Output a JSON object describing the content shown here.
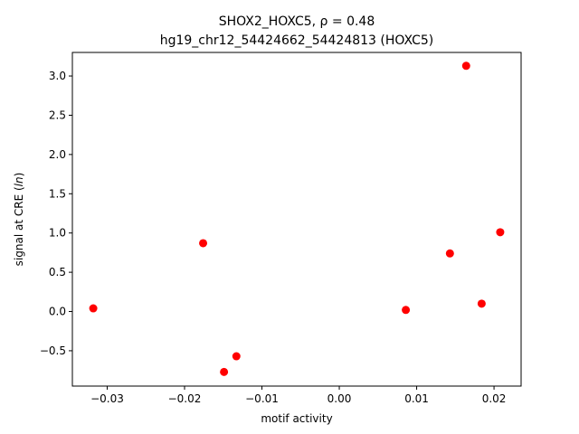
{
  "chart_data": {
    "type": "scatter",
    "title": "SHOX2_HOXC5, ρ = 0.48",
    "subtitle": "hg19_chr12_54424662_54424813 (HOXC5)",
    "xlabel": "motif activity",
    "ylabel": "signal at CRE (ln)",
    "xlim": [
      -0.0345,
      0.0235
    ],
    "ylim": [
      -0.95,
      3.3
    ],
    "xticks": [
      -0.03,
      -0.02,
      -0.01,
      0.0,
      0.01,
      0.02
    ],
    "xtick_labels": [
      "−0.03",
      "−0.02",
      "−0.01",
      "0.00",
      "0.01",
      "0.02"
    ],
    "yticks": [
      -0.5,
      0.0,
      0.5,
      1.0,
      1.5,
      2.0,
      2.5,
      3.0
    ],
    "ytick_labels": [
      "−0.5",
      "0.0",
      "0.5",
      "1.0",
      "1.5",
      "2.0",
      "2.5",
      "3.0"
    ],
    "grid": false,
    "marker_color": "#ff0000",
    "points": [
      {
        "x": -0.0318,
        "y": 0.04
      },
      {
        "x": -0.0176,
        "y": 0.87
      },
      {
        "x": -0.0149,
        "y": -0.77
      },
      {
        "x": -0.0133,
        "y": -0.57
      },
      {
        "x": 0.0086,
        "y": 0.02
      },
      {
        "x": 0.0143,
        "y": 0.74
      },
      {
        "x": 0.0164,
        "y": 3.13
      },
      {
        "x": 0.0184,
        "y": 0.1
      },
      {
        "x": 0.0208,
        "y": 1.01
      }
    ]
  }
}
